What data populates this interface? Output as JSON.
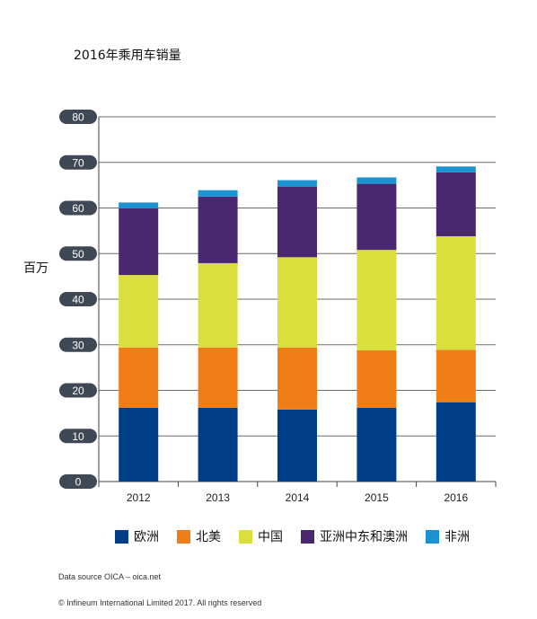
{
  "chart_data": {
    "type": "bar",
    "stacked": true,
    "title": "2016年乘用车销量",
    "ylabel": "百万",
    "xlabel": "",
    "categories": [
      "2012",
      "2013",
      "2014",
      "2015",
      "2016"
    ],
    "ylim": [
      0,
      80
    ],
    "yticks": [
      0,
      10,
      20,
      30,
      40,
      50,
      60,
      70,
      80
    ],
    "grid": true,
    "legend_position": "bottom",
    "series": [
      {
        "name": "欧洲",
        "color": "#003f87",
        "values": [
          16.2,
          16.2,
          15.8,
          16.2,
          17.4
        ]
      },
      {
        "name": "北美",
        "color": "#f07d16",
        "values": [
          13.2,
          13.2,
          13.6,
          12.6,
          11.5
        ]
      },
      {
        "name": "中国",
        "color": "#d9df3c",
        "values": [
          15.9,
          18.5,
          19.8,
          22.0,
          24.9
        ]
      },
      {
        "name": "亚洲中东和澳洲",
        "color": "#4a2870",
        "values": [
          14.6,
          14.6,
          15.5,
          14.5,
          14.0
        ]
      },
      {
        "name": "非洲",
        "color": "#1b93d2",
        "values": [
          1.3,
          1.4,
          1.4,
          1.4,
          1.3
        ]
      }
    ]
  },
  "footer": {
    "source": "Data source OICA – oica.net",
    "copyright": "© Infineum International Limited 2017. All rights reserved"
  }
}
